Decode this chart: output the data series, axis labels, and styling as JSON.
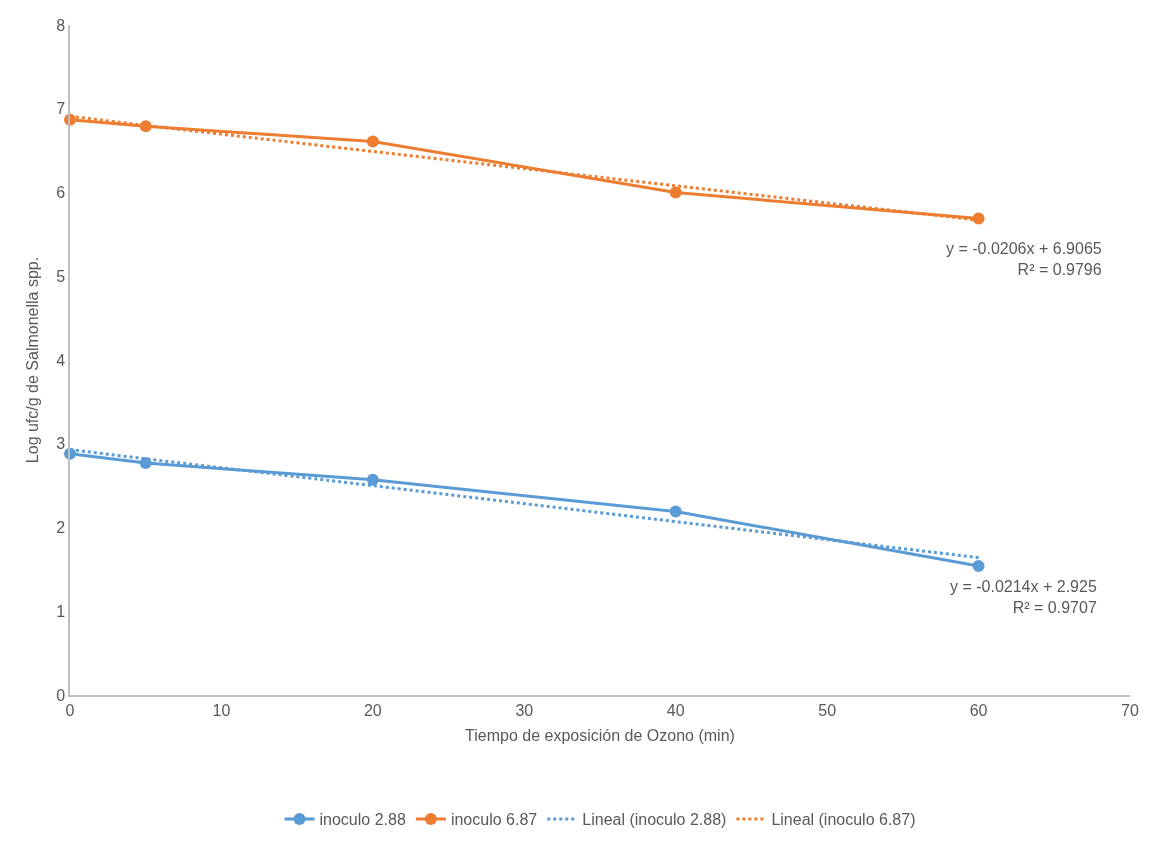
{
  "chart_data": {
    "type": "line",
    "xlabel": "Tiempo de exposición de Ozono (min)",
    "ylabel": "Log ufc/g de Salmonella spp.",
    "x": [
      0,
      5,
      20,
      40,
      60
    ],
    "series": [
      {
        "name": "inoculo 2.88",
        "color": "#5b9bd5",
        "values": [
          2.88,
          2.77,
          2.57,
          2.19,
          1.54
        ],
        "marker": "circle",
        "line_style": "solid"
      },
      {
        "name": "inoculo 6.87",
        "color": "#ed7d31",
        "values": [
          6.87,
          6.79,
          6.61,
          6.0,
          5.69
        ],
        "marker": "circle",
        "line_style": "solid"
      },
      {
        "name": "Lineal (inoculo 2.88)",
        "color": "#5b9bd5",
        "values": [
          2.93,
          2.82,
          2.5,
          2.07,
          1.64
        ],
        "marker": "none",
        "line_style": "dotted"
      },
      {
        "name": "Lineal (inoculo 6.87)",
        "color": "#ed7d31",
        "values": [
          6.91,
          6.8,
          6.49,
          6.08,
          5.67
        ],
        "marker": "none",
        "line_style": "dotted"
      }
    ],
    "annotations": [
      {
        "text": "y = -0.0206x + 6.9065\nR² = 0.9796",
        "x": 60,
        "y": 5.67
      },
      {
        "text": "y = -0.0214x + 2.925\nR² = 0.9707",
        "x": 60,
        "y": 1.64
      }
    ],
    "xlim": [
      0,
      70
    ],
    "xticks": [
      0,
      10,
      20,
      30,
      40,
      50,
      60,
      70
    ],
    "ylim": [
      0,
      8
    ],
    "yticks": [
      0,
      1,
      2,
      3,
      4,
      5,
      6,
      7,
      8
    ],
    "grid": false,
    "legend": "bottom"
  }
}
